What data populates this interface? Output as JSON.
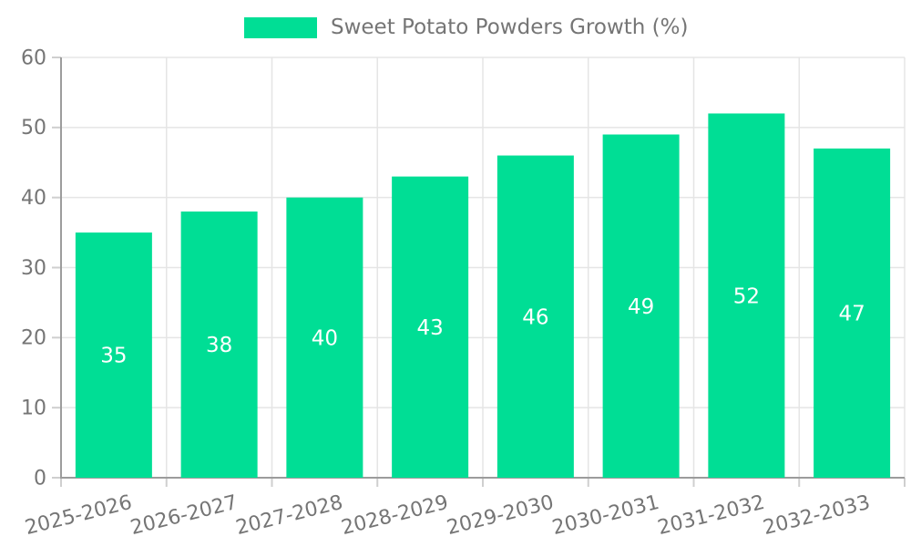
{
  "legend": {
    "label": "Sweet Potato Powders Growth (%)"
  },
  "colors": {
    "bar": "#00DE95",
    "grid": "#E5E5E5",
    "axis_line": "#9C9C9C",
    "tick_mark": "#CFCFCF",
    "axis_text": "#757575",
    "value_text": "#FFFFFF",
    "background": "#FFFFFF"
  },
  "chart_data": {
    "type": "bar",
    "title": "",
    "categories": [
      "2025-2026",
      "2026-2027",
      "2027-2028",
      "2028-2029",
      "2029-2030",
      "2030-2031",
      "2031-2032",
      "2032-2033"
    ],
    "series": [
      {
        "name": "Sweet Potato Powders Growth (%)",
        "values": [
          35,
          38,
          40,
          43,
          46,
          49,
          52,
          47
        ]
      }
    ],
    "xlabel": "",
    "ylabel": "",
    "ylim": [
      0,
      60
    ],
    "yticks": [
      0,
      10,
      20,
      30,
      40,
      50,
      60
    ],
    "grid": true,
    "legend_position": "top-center",
    "value_label_position": "inside-center",
    "x_tick_rotation_deg": -14
  }
}
